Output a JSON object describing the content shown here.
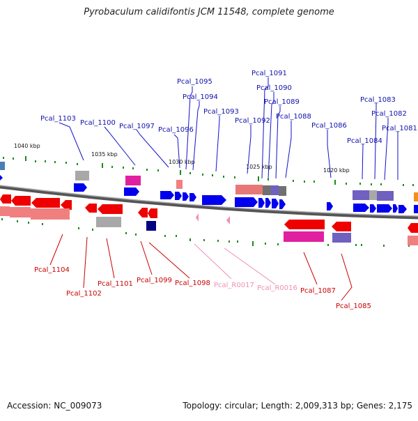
{
  "title": "Pyrobaculum calidifontis JCM 11548, complete genome",
  "footer": {
    "accession": "Accession: NC_009073",
    "summary": "Topology: circular; Length: 2,009,313 bp; Genes: 2,175"
  },
  "colors": {
    "forward": "#0000ee",
    "reverse": "#ee0000",
    "forward_label": "#00008b",
    "reverse_label": "#cc0000",
    "rna_label": "#f08fb4",
    "backbone": "#808080",
    "gc_tick": "#1a7f1a"
  },
  "scale": [
    "1040 kbp",
    "1035 kbp",
    "1030 kbp",
    "1025 kbp",
    "1020 kbp"
  ],
  "top_labels": [
    {
      "name": "Pcal_1091"
    },
    {
      "name": "Pcal_1090"
    },
    {
      "name": "Pcal_1089"
    },
    {
      "name": "Pcal_1088"
    },
    {
      "name": "Pcal_1095"
    },
    {
      "name": "Pcal_1094"
    },
    {
      "name": "Pcal_1093"
    },
    {
      "name": "Pcal_1092"
    },
    {
      "name": "Pcal_1103"
    },
    {
      "name": "Pcal_1100"
    },
    {
      "name": "Pcal_1097"
    },
    {
      "name": "Pcal_1096"
    },
    {
      "name": "Pcal_1086"
    },
    {
      "name": "Pcal_1083"
    },
    {
      "name": "Pcal_1082"
    },
    {
      "name": "Pcal_1081"
    },
    {
      "name": "Pcal_1084"
    }
  ],
  "bottom_labels": [
    {
      "name": "Pcal_1104"
    },
    {
      "name": "Pcal_1102"
    },
    {
      "name": "Pcal_1101"
    },
    {
      "name": "Pcal_1099"
    },
    {
      "name": "Pcal_1098"
    },
    {
      "name": "Pcal_R0017"
    },
    {
      "name": "Pcal_R0016"
    },
    {
      "name": "Pcal_1087"
    },
    {
      "name": "Pcal_1085"
    }
  ]
}
